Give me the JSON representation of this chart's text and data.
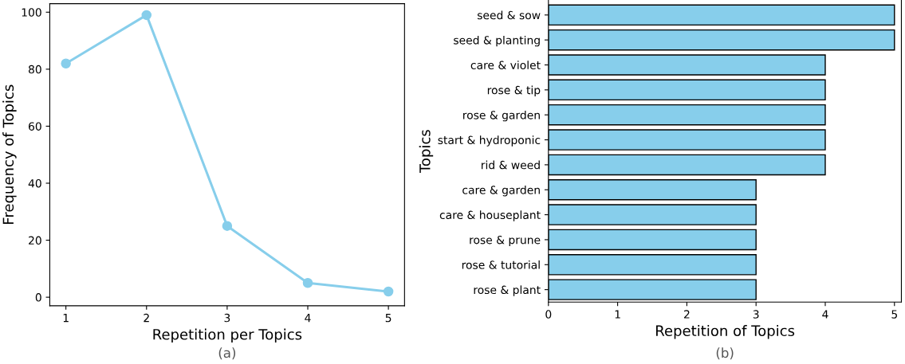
{
  "chart_data": [
    {
      "type": "line",
      "xlabel": "Repetition per Topics",
      "ylabel": "Frequency of Topics",
      "x": [
        1,
        2,
        3,
        4,
        5
      ],
      "series": [
        {
          "color": "#87ceeb",
          "values": [
            82,
            99,
            25,
            5,
            2
          ]
        }
      ],
      "xlim": [
        0.8,
        5.2
      ],
      "ylim": [
        -3,
        103
      ],
      "xticks": [
        1,
        2,
        3,
        4,
        5
      ],
      "yticks": [
        0,
        20,
        40,
        60,
        80,
        100
      ],
      "marker": "circle",
      "line_style": "solid",
      "grid": false,
      "annotations": [
        "(a)"
      ]
    },
    {
      "type": "bar",
      "orientation": "horizontal",
      "xlabel": "Repetition of Topics",
      "ylabel": "Topics",
      "categories": [
        "seed & sow",
        "seed & planting",
        "care & violet",
        "rose & tip",
        "rose & garden",
        "start & hydroponic",
        "rid & weed",
        "care & garden",
        "care & houseplant",
        "rose & prune",
        "rose & tutorial",
        "rose & plant"
      ],
      "series": [
        {
          "color": "#87ceeb",
          "values": [
            5,
            5,
            4,
            4,
            4,
            4,
            4,
            3,
            3,
            3,
            3,
            3
          ]
        }
      ],
      "xlim": [
        0,
        5.1
      ],
      "xticks": [
        0,
        1,
        2,
        3,
        4,
        5
      ],
      "grid": false,
      "annotations": [
        "(b)"
      ]
    }
  ]
}
